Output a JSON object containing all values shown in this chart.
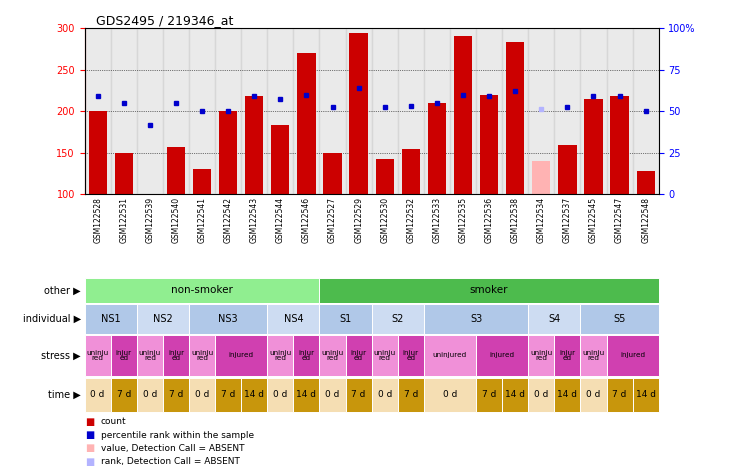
{
  "title": "GDS2495 / 219346_at",
  "samples": [
    "GSM122528",
    "GSM122531",
    "GSM122539",
    "GSM122540",
    "GSM122541",
    "GSM122542",
    "GSM122543",
    "GSM122544",
    "GSM122546",
    "GSM122527",
    "GSM122529",
    "GSM122530",
    "GSM122532",
    "GSM122533",
    "GSM122535",
    "GSM122536",
    "GSM122538",
    "GSM122534",
    "GSM122537",
    "GSM122545",
    "GSM122547",
    "GSM122548"
  ],
  "count_values": [
    200,
    150,
    100,
    157,
    130,
    200,
    218,
    183,
    270,
    150,
    294,
    143,
    155,
    210,
    291,
    220,
    284,
    140,
    160,
    215,
    218,
    128
  ],
  "count_absent": [
    false,
    false,
    false,
    false,
    false,
    false,
    false,
    false,
    false,
    false,
    false,
    false,
    false,
    false,
    false,
    false,
    false,
    true,
    false,
    false,
    false,
    false
  ],
  "rank_values": [
    218,
    210,
    183,
    210,
    200,
    200,
    218,
    215,
    220,
    205,
    228,
    205,
    207,
    210,
    220,
    218,
    225,
    203,
    205,
    218,
    218,
    200
  ],
  "rank_absent": [
    false,
    false,
    false,
    false,
    false,
    false,
    false,
    false,
    false,
    false,
    false,
    false,
    false,
    false,
    false,
    false,
    false,
    true,
    false,
    false,
    false,
    false
  ],
  "ylim_left": [
    100,
    300
  ],
  "ylim_right": [
    0,
    100
  ],
  "yticks_left": [
    100,
    150,
    200,
    250,
    300
  ],
  "yticks_right": [
    0,
    25,
    50,
    75,
    100
  ],
  "count_color": "#cc0000",
  "count_absent_color": "#ffb3b3",
  "rank_color": "#0000cc",
  "rank_absent_color": "#b3b3ff",
  "bar_bottom": 100,
  "other_row": {
    "segments": [
      {
        "text": "non-smoker",
        "start": 0,
        "end": 9,
        "color": "#90ee90"
      },
      {
        "text": "smoker",
        "start": 9,
        "end": 22,
        "color": "#4dbb4d"
      }
    ]
  },
  "individual_row": {
    "segments": [
      {
        "text": "NS1",
        "start": 0,
        "end": 2,
        "color": "#b0c8e8"
      },
      {
        "text": "NS2",
        "start": 2,
        "end": 4,
        "color": "#cddcf2"
      },
      {
        "text": "NS3",
        "start": 4,
        "end": 7,
        "color": "#b0c8e8"
      },
      {
        "text": "NS4",
        "start": 7,
        "end": 9,
        "color": "#cddcf2"
      },
      {
        "text": "S1",
        "start": 9,
        "end": 11,
        "color": "#b0c8e8"
      },
      {
        "text": "S2",
        "start": 11,
        "end": 13,
        "color": "#cddcf2"
      },
      {
        "text": "S3",
        "start": 13,
        "end": 17,
        "color": "#b0c8e8"
      },
      {
        "text": "S4",
        "start": 17,
        "end": 19,
        "color": "#cddcf2"
      },
      {
        "text": "S5",
        "start": 19,
        "end": 22,
        "color": "#b0c8e8"
      }
    ]
  },
  "stress_row": {
    "segments": [
      {
        "text": "uninju\nred",
        "start": 0,
        "end": 1,
        "color": "#f090d8"
      },
      {
        "text": "injur\ned",
        "start": 1,
        "end": 2,
        "color": "#d040b0"
      },
      {
        "text": "uninju\nred",
        "start": 2,
        "end": 3,
        "color": "#f090d8"
      },
      {
        "text": "injur\ned",
        "start": 3,
        "end": 4,
        "color": "#d040b0"
      },
      {
        "text": "uninju\nred",
        "start": 4,
        "end": 5,
        "color": "#f090d8"
      },
      {
        "text": "injured",
        "start": 5,
        "end": 7,
        "color": "#d040b0"
      },
      {
        "text": "uninju\nred",
        "start": 7,
        "end": 8,
        "color": "#f090d8"
      },
      {
        "text": "injur\ned",
        "start": 8,
        "end": 9,
        "color": "#d040b0"
      },
      {
        "text": "uninju\nred",
        "start": 9,
        "end": 10,
        "color": "#f090d8"
      },
      {
        "text": "injur\ned",
        "start": 10,
        "end": 11,
        "color": "#d040b0"
      },
      {
        "text": "uninju\nred",
        "start": 11,
        "end": 12,
        "color": "#f090d8"
      },
      {
        "text": "injur\ned",
        "start": 12,
        "end": 13,
        "color": "#d040b0"
      },
      {
        "text": "uninjured",
        "start": 13,
        "end": 15,
        "color": "#f090d8"
      },
      {
        "text": "injured",
        "start": 15,
        "end": 17,
        "color": "#d040b0"
      },
      {
        "text": "uninju\nred",
        "start": 17,
        "end": 18,
        "color": "#f090d8"
      },
      {
        "text": "injur\ned",
        "start": 18,
        "end": 19,
        "color": "#d040b0"
      },
      {
        "text": "uninju\nred",
        "start": 19,
        "end": 20,
        "color": "#f090d8"
      },
      {
        "text": "injured",
        "start": 20,
        "end": 22,
        "color": "#d040b0"
      }
    ]
  },
  "time_row": {
    "segments": [
      {
        "text": "0 d",
        "start": 0,
        "end": 1,
        "color": "#f5deb3"
      },
      {
        "text": "7 d",
        "start": 1,
        "end": 2,
        "color": "#c8960c"
      },
      {
        "text": "0 d",
        "start": 2,
        "end": 3,
        "color": "#f5deb3"
      },
      {
        "text": "7 d",
        "start": 3,
        "end": 4,
        "color": "#c8960c"
      },
      {
        "text": "0 d",
        "start": 4,
        "end": 5,
        "color": "#f5deb3"
      },
      {
        "text": "7 d",
        "start": 5,
        "end": 6,
        "color": "#c8960c"
      },
      {
        "text": "14 d",
        "start": 6,
        "end": 7,
        "color": "#c8960c"
      },
      {
        "text": "0 d",
        "start": 7,
        "end": 8,
        "color": "#f5deb3"
      },
      {
        "text": "14 d",
        "start": 8,
        "end": 9,
        "color": "#c8960c"
      },
      {
        "text": "0 d",
        "start": 9,
        "end": 10,
        "color": "#f5deb3"
      },
      {
        "text": "7 d",
        "start": 10,
        "end": 11,
        "color": "#c8960c"
      },
      {
        "text": "0 d",
        "start": 11,
        "end": 12,
        "color": "#f5deb3"
      },
      {
        "text": "7 d",
        "start": 12,
        "end": 13,
        "color": "#c8960c"
      },
      {
        "text": "0 d",
        "start": 13,
        "end": 15,
        "color": "#f5deb3"
      },
      {
        "text": "7 d",
        "start": 15,
        "end": 16,
        "color": "#c8960c"
      },
      {
        "text": "14 d",
        "start": 16,
        "end": 17,
        "color": "#c8960c"
      },
      {
        "text": "0 d",
        "start": 17,
        "end": 18,
        "color": "#f5deb3"
      },
      {
        "text": "14 d",
        "start": 18,
        "end": 19,
        "color": "#c8960c"
      },
      {
        "text": "0 d",
        "start": 19,
        "end": 20,
        "color": "#f5deb3"
      },
      {
        "text": "7 d",
        "start": 20,
        "end": 21,
        "color": "#c8960c"
      },
      {
        "text": "14 d",
        "start": 21,
        "end": 22,
        "color": "#c8960c"
      }
    ]
  },
  "legend": [
    {
      "label": "count",
      "color": "#cc0000"
    },
    {
      "label": "percentile rank within the sample",
      "color": "#0000cc"
    },
    {
      "label": "value, Detection Call = ABSENT",
      "color": "#ffb3b3"
    },
    {
      "label": "rank, Detection Call = ABSENT",
      "color": "#b3b3ff"
    }
  ],
  "row_labels": [
    "other",
    "individual",
    "stress",
    "time"
  ],
  "background_color": "#ffffff",
  "sample_bg_color": "#cccccc"
}
